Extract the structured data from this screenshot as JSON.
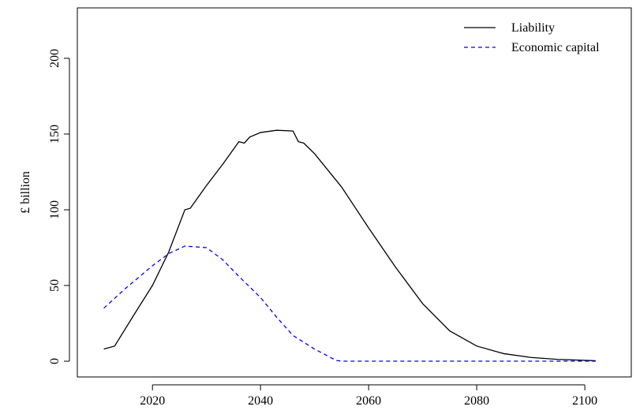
{
  "chart_data": {
    "type": "line",
    "y_label": "£ billion",
    "xlim": [
      2006.1,
      2108.6
    ],
    "ylim": [
      -10.4,
      233.3
    ],
    "xticks": [
      2020,
      2040,
      2060,
      2080,
      2100
    ],
    "yticks": [
      0,
      50,
      100,
      150,
      200
    ],
    "legend": "top-right",
    "series": [
      {
        "name": "Liability",
        "color": "#000000",
        "dash": "solid",
        "x": [
          2011,
          2013,
          2017,
          2020,
          2023,
          2026,
          2027,
          2030,
          2033,
          2036,
          2037,
          2038,
          2040,
          2043,
          2046,
          2047,
          2048,
          2050,
          2055,
          2060,
          2065,
          2070,
          2075,
          2080,
          2085,
          2090,
          2095,
          2102
        ],
        "values": [
          8,
          10,
          33,
          50,
          72,
          100,
          101,
          116,
          130,
          145,
          144,
          148,
          151,
          152.5,
          152,
          145,
          144,
          137,
          115,
          88,
          62,
          38,
          20,
          10,
          5,
          2.5,
          1.2,
          0.3
        ]
      },
      {
        "name": "Economic capital",
        "color": "#0000ff",
        "dash": "dashed",
        "x": [
          2011,
          2015,
          2020,
          2023,
          2026,
          2030,
          2033,
          2036,
          2040,
          2043,
          2046,
          2050,
          2054,
          2055,
          2102
        ],
        "values": [
          35,
          48,
          63,
          71,
          76,
          75,
          67,
          56,
          42,
          29,
          17,
          8,
          0.5,
          0,
          0
        ]
      }
    ]
  }
}
